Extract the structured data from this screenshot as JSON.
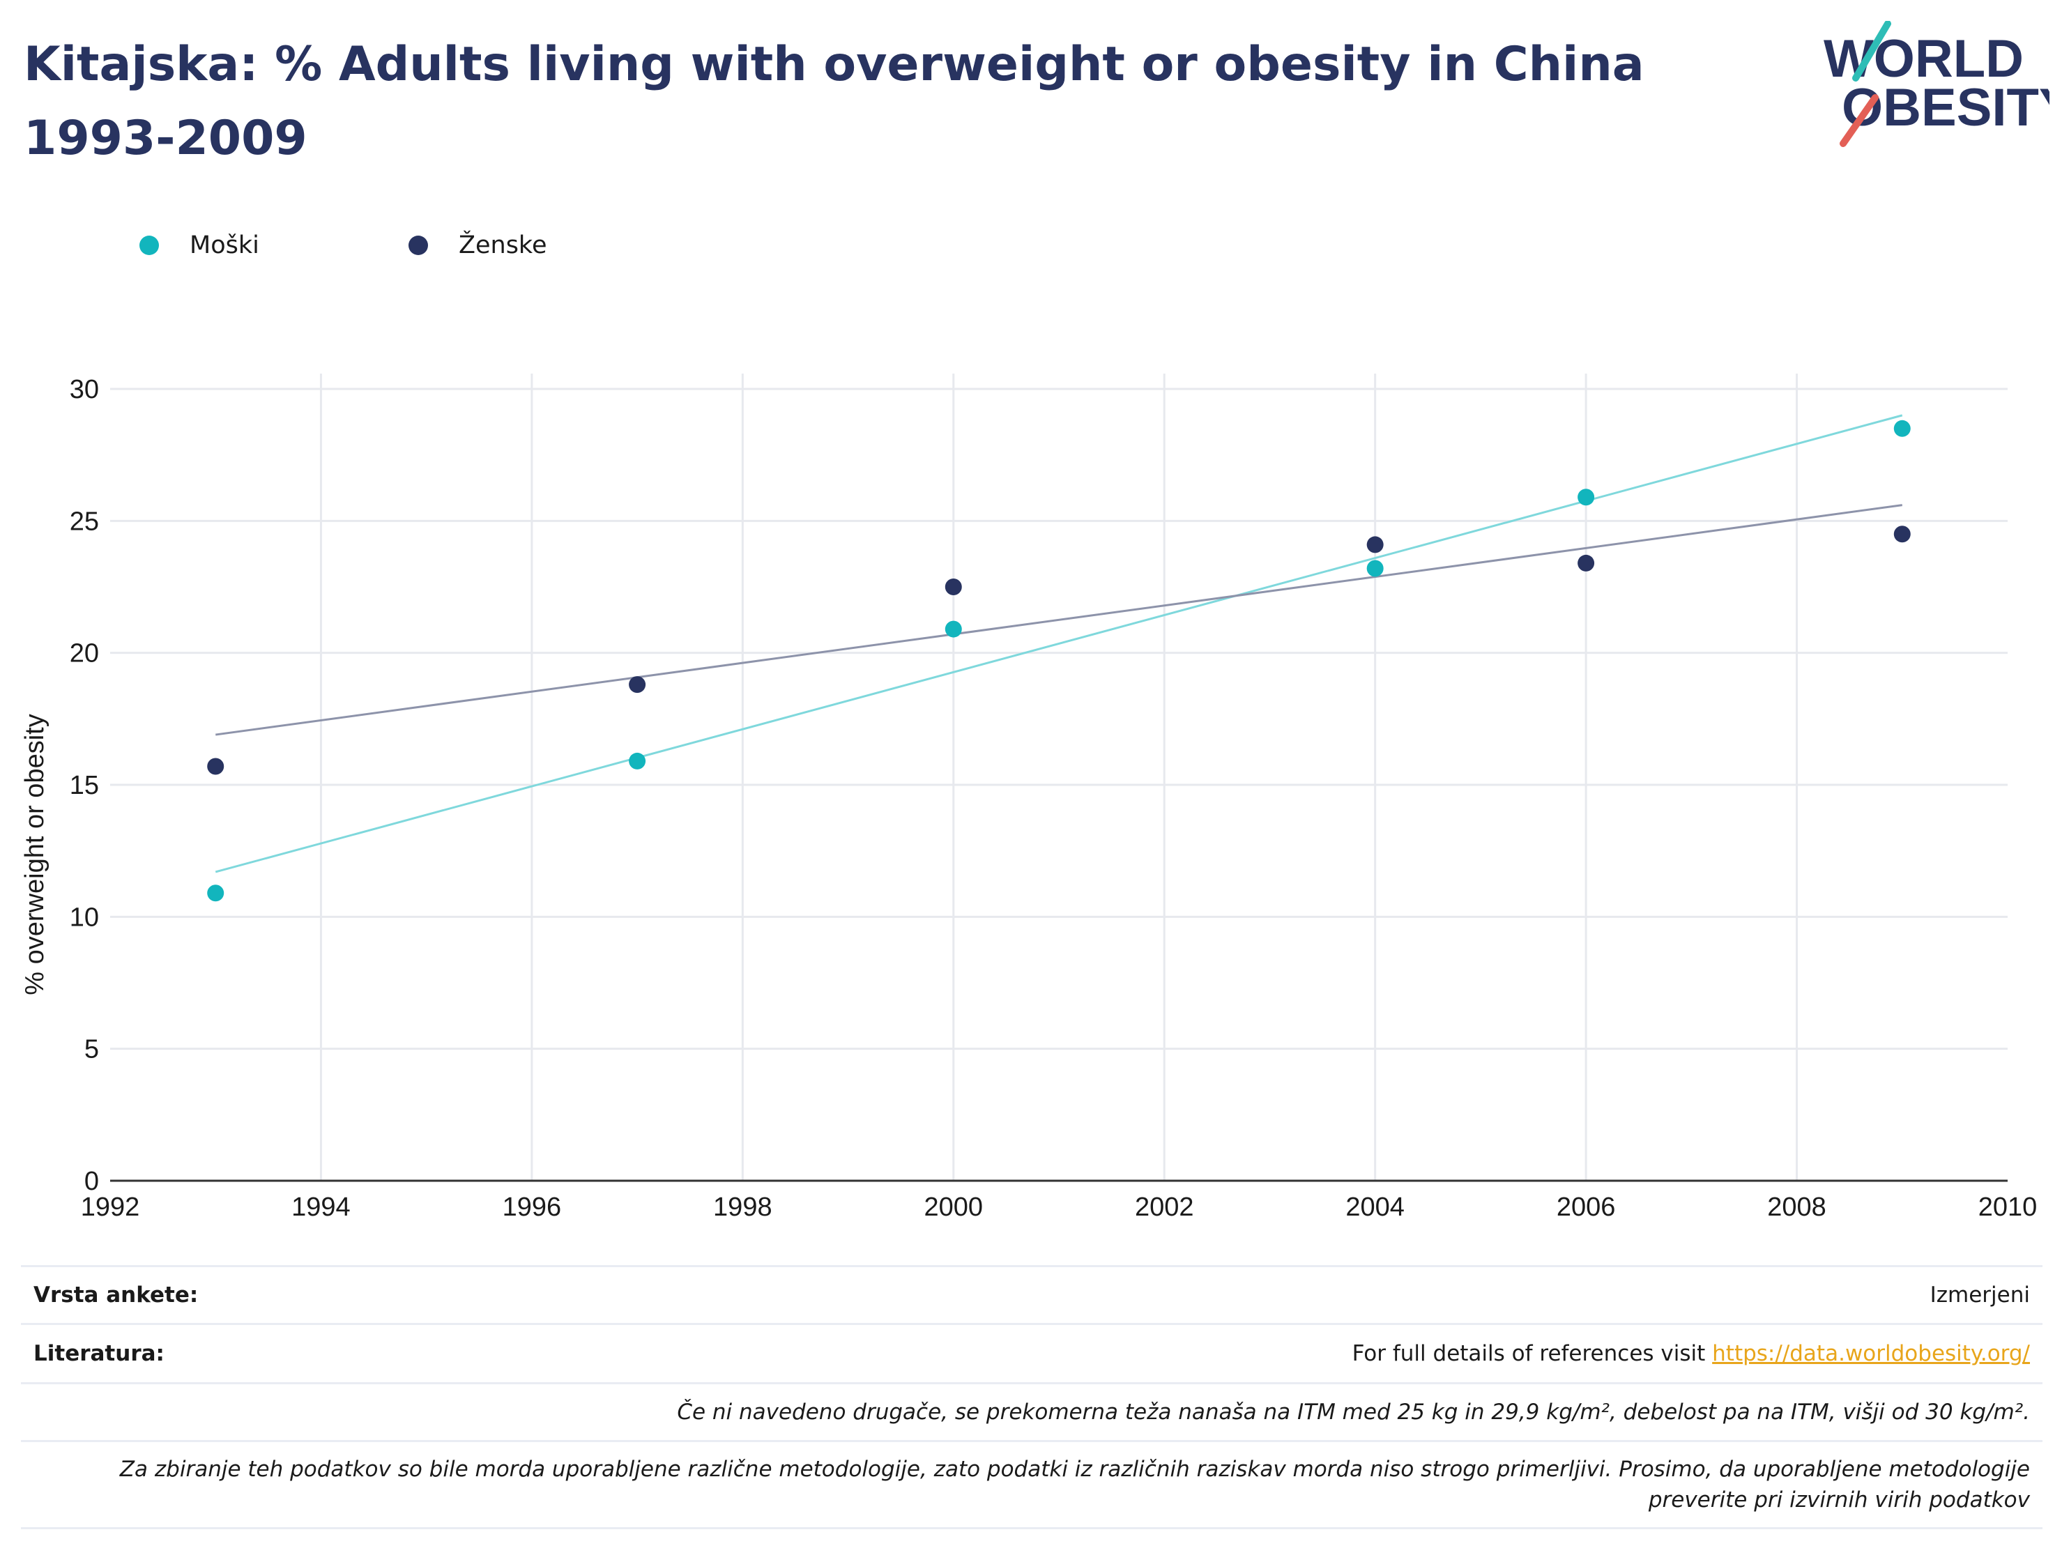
{
  "title": "Kitajska: % Adults living with overweight or obesity in China 1993-2009",
  "logo": {
    "line1": "WORLD",
    "line2": "OBESITY"
  },
  "colors": {
    "male": "#12b5bd",
    "female": "#283360",
    "title": "#283360",
    "link": "#e8a51b",
    "accent_red": "#e35f56"
  },
  "legend": [
    {
      "label": "Moški",
      "color": "#12b5bd"
    },
    {
      "label": "Ženske",
      "color": "#283360"
    }
  ],
  "chart_data": {
    "type": "scatter",
    "title": "Kitajska: % Adults living with overweight or obesity in China 1993-2009",
    "xlabel": "",
    "ylabel": "% overweight or obesity",
    "xlim": [
      1992,
      2010
    ],
    "ylim": [
      0,
      30
    ],
    "xticks": [
      1992,
      1994,
      1996,
      1998,
      2000,
      2002,
      2004,
      2006,
      2008,
      2010
    ],
    "yticks": [
      0,
      5,
      10,
      15,
      20,
      25,
      30
    ],
    "grid": true,
    "legend_position": "top-left",
    "series": [
      {
        "name": "Moški",
        "color": "#12b5bd",
        "points": [
          {
            "x": 1993,
            "y": 10.9
          },
          {
            "x": 1997,
            "y": 15.9
          },
          {
            "x": 2000,
            "y": 20.9
          },
          {
            "x": 2004,
            "y": 23.2
          },
          {
            "x": 2006,
            "y": 25.9
          },
          {
            "x": 2009,
            "y": 28.5
          }
        ],
        "trend": [
          {
            "x": 1993,
            "y": 11.7
          },
          {
            "x": 2009,
            "y": 29.0
          }
        ]
      },
      {
        "name": "Ženske",
        "color": "#283360",
        "points": [
          {
            "x": 1993,
            "y": 15.7
          },
          {
            "x": 1997,
            "y": 18.8
          },
          {
            "x": 2000,
            "y": 22.5
          },
          {
            "x": 2004,
            "y": 24.1
          },
          {
            "x": 2006,
            "y": 23.4
          },
          {
            "x": 2009,
            "y": 24.5
          }
        ],
        "trend": [
          {
            "x": 1993,
            "y": 16.9
          },
          {
            "x": 2009,
            "y": 25.6
          }
        ]
      }
    ]
  },
  "footer": {
    "survey_label": "Vrsta ankete:",
    "survey_value": "Izmerjeni",
    "refs_label": "Literatura:",
    "refs_text": "For full details of references visit ",
    "refs_link": "https://data.worldobesity.org/",
    "note1": "Če ni navedeno drugače, se prekomerna teža nanaša na ITM med 25 kg in 29,9 kg/m², debelost pa na ITM, višji od 30 kg/m².",
    "note2": "Za zbiranje teh podatkov so bile morda uporabljene različne metodologije, zato podatki iz različnih raziskav morda niso strogo primerljivi. Prosimo, da uporabljene metodologije preverite pri izvirnih virih podatkov"
  }
}
